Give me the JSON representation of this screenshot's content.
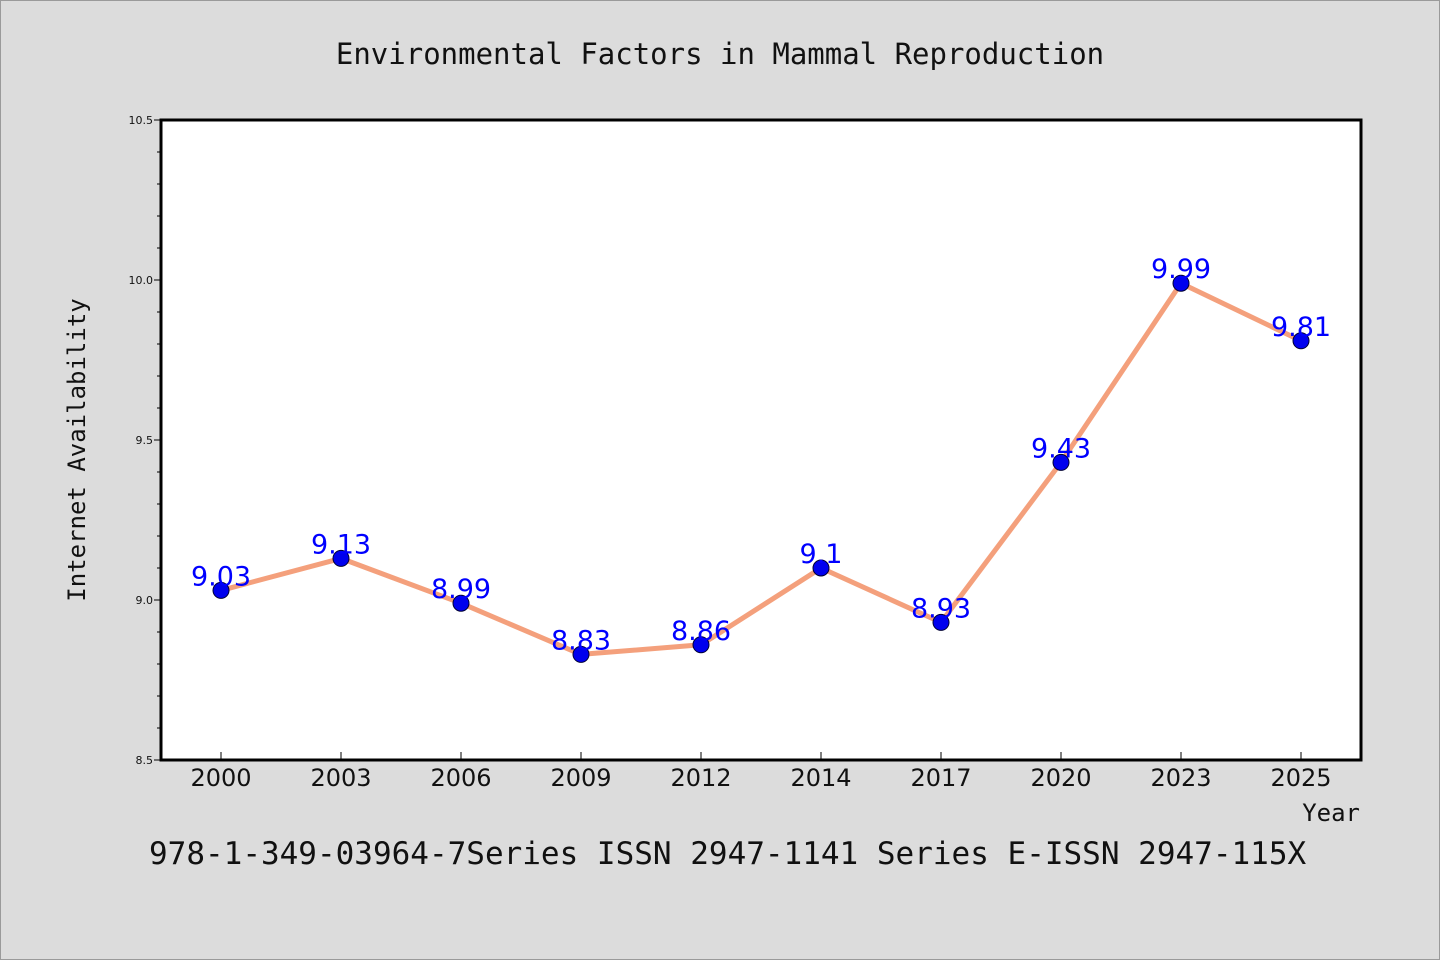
{
  "chart_data": {
    "type": "line",
    "title": "Environmental Factors in Mammal Reproduction",
    "xlabel": "Year",
    "ylabel": "Internet Availability",
    "categories": [
      "2000",
      "2003",
      "2006",
      "2009",
      "2012",
      "2014",
      "2017",
      "2020",
      "2023",
      "2025"
    ],
    "series": [
      {
        "values": [
          9.03,
          9.13,
          8.99,
          8.83,
          8.86,
          9.1,
          8.93,
          9.43,
          9.99,
          9.81
        ],
        "data_labels": [
          "9.03",
          "9.13",
          "8.99",
          "8.83",
          "8.86",
          "9.1",
          "8.93",
          "9.43",
          "9.99",
          "9.81"
        ],
        "line_color": "#f4a07c",
        "marker_color": "#0000ee",
        "label_color": "#0000ff"
      }
    ],
    "ylim": [
      8.5,
      10.5
    ],
    "yticks": [
      "8.5",
      "9.0",
      "9.5",
      "10.0",
      "10.5"
    ],
    "grid": false,
    "legend": "none"
  },
  "footer": {
    "text": "978-1-349-03964-7Series ISSN 2947-1141 Series E-ISSN 2947-115X"
  },
  "colors": {
    "background": "#dcdcdc",
    "plot_area": "#ffffff",
    "axis": "#000000"
  }
}
